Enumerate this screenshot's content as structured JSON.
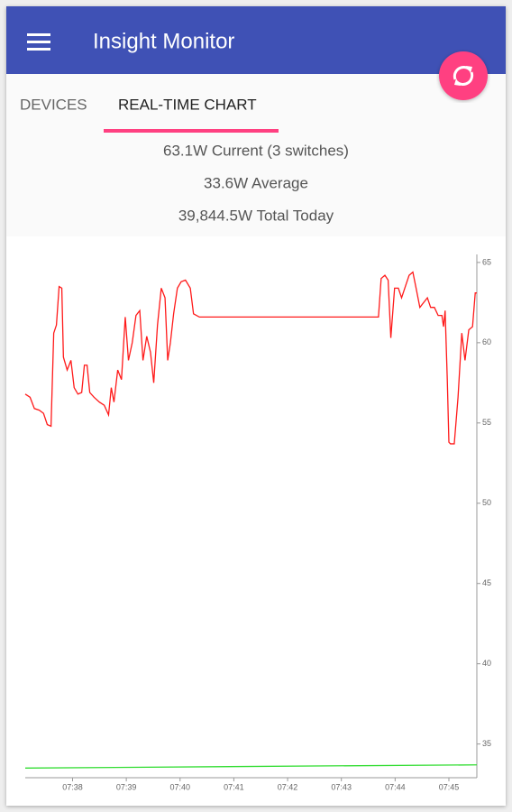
{
  "header": {
    "title": "Insight Monitor"
  },
  "tabs": [
    "DEVICES",
    "REAL-TIME CHART"
  ],
  "active_tab": 1,
  "stats": [
    "63.1W Current (3 switches)",
    "33.6W Average",
    "39,844.5W Total Today"
  ],
  "chart_data": {
    "type": "line",
    "yaxis_position": "right",
    "grid": false,
    "xlim": [
      457.12,
      465.52
    ],
    "xticks": [
      {
        "value": 458,
        "label": "07:38"
      },
      {
        "value": 459,
        "label": "07:39"
      },
      {
        "value": 460,
        "label": "07:40"
      },
      {
        "value": 461,
        "label": "07:41"
      },
      {
        "value": 462,
        "label": "07:42"
      },
      {
        "value": 463,
        "label": "07:43"
      },
      {
        "value": 464,
        "label": "07:44"
      },
      {
        "value": 465,
        "label": "07:45"
      }
    ],
    "ylim": [
      32.9,
      65.5
    ],
    "yticks": [
      35,
      40,
      45,
      50,
      55,
      60,
      65
    ],
    "series": [
      {
        "color": "#ff1a1a",
        "x": [
          457.12,
          457.21,
          457.29,
          457.38,
          457.46,
          457.53,
          457.6,
          457.65,
          457.7,
          457.75,
          457.8,
          457.83,
          457.9,
          457.97,
          458.03,
          458.1,
          458.17,
          458.22,
          458.27,
          458.32,
          458.4,
          458.5,
          458.59,
          458.67,
          458.72,
          458.77,
          458.84,
          458.91,
          458.98,
          459.04,
          459.11,
          459.18,
          459.25,
          459.31,
          459.38,
          459.45,
          459.51,
          459.58,
          459.65,
          459.72,
          459.77,
          459.82,
          459.88,
          459.95,
          460.02,
          460.1,
          460.19,
          460.25,
          460.36,
          460.69,
          461.2,
          461.7,
          462.21,
          462.71,
          463.22,
          463.69,
          463.74,
          463.81,
          463.87,
          463.92,
          463.99,
          464.06,
          464.12,
          464.19,
          464.26,
          464.33,
          464.39,
          464.46,
          464.53,
          464.6,
          464.66,
          464.73,
          464.8,
          464.87,
          464.9,
          464.93,
          464.97,
          465.0,
          465.03,
          465.1,
          465.17,
          465.24,
          465.3,
          465.37,
          465.44,
          465.49,
          465.52
        ],
        "values": [
          56.8,
          56.6,
          55.9,
          55.8,
          55.6,
          54.9,
          54.8,
          60.6,
          61.1,
          63.5,
          63.4,
          59.1,
          58.3,
          58.9,
          57.2,
          56.8,
          56.9,
          58.6,
          58.6,
          56.9,
          56.6,
          56.3,
          56.1,
          55.5,
          57.2,
          56.3,
          58.3,
          57.7,
          61.6,
          58.9,
          60.0,
          61.7,
          62.0,
          58.9,
          60.4,
          59.4,
          57.5,
          61.1,
          63.4,
          62.8,
          58.9,
          60.0,
          61.8,
          63.4,
          63.8,
          63.9,
          63.4,
          61.8,
          61.6,
          61.6,
          61.6,
          61.6,
          61.6,
          61.6,
          61.6,
          61.6,
          64.0,
          64.2,
          63.9,
          60.3,
          63.4,
          63.4,
          62.8,
          63.5,
          64.2,
          64.4,
          63.4,
          62.2,
          62.5,
          62.8,
          62.2,
          62.2,
          61.7,
          61.7,
          61.0,
          62.0,
          57.7,
          53.8,
          53.7,
          53.7,
          56.6,
          60.6,
          58.9,
          60.8,
          61.0,
          63.1,
          63.1
        ]
      },
      {
        "color": "#33dd33",
        "x": [
          457.12,
          461.2,
          465.52
        ],
        "values": [
          33.5,
          33.6,
          33.7
        ]
      }
    ]
  }
}
